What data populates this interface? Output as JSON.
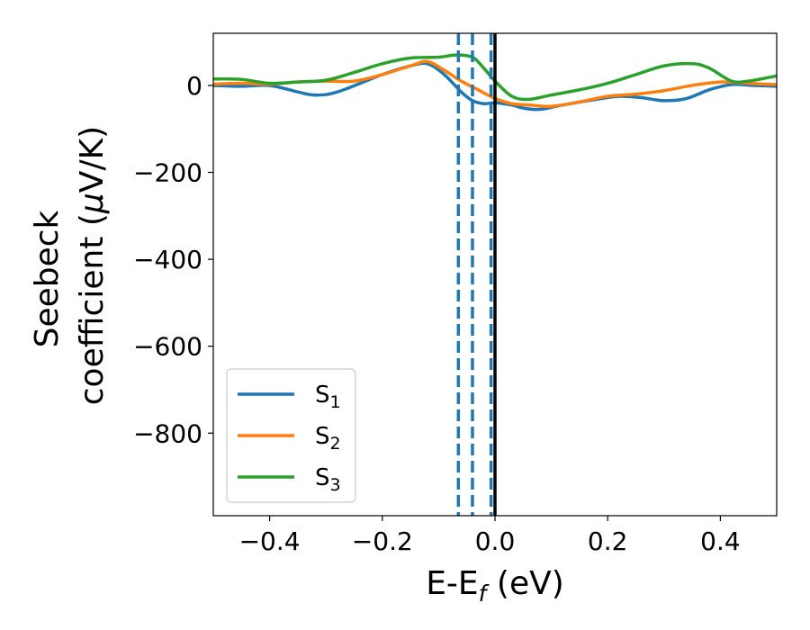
{
  "chart_data": {
    "type": "line",
    "xlabel": {
      "main": "E-E",
      "sub": "f",
      "unit": " (eV)"
    },
    "ylabel": {
      "line1": "Seebeck",
      "line2_prefix": "coefficient  (",
      "line2_mu": "μ",
      "line2_suffix": "V/K)"
    },
    "xlim": [
      -0.5,
      0.5
    ],
    "ylim": [
      -990,
      120
    ],
    "xticks": [
      -0.4,
      -0.2,
      0.0,
      0.2,
      0.4
    ],
    "xtick_labels": [
      "−0.4",
      "−0.2",
      "0.0",
      "0.2",
      "0.4"
    ],
    "yticks": [
      0,
      -200,
      -400,
      -600,
      -800
    ],
    "ytick_labels": [
      "0",
      "−200",
      "−400",
      "−600",
      "−800"
    ],
    "vlines_dashed": {
      "x": [
        -0.065,
        -0.04,
        -0.007
      ],
      "color": "#1f77b4"
    },
    "vline_solid": {
      "x": 0.0,
      "color": "#000000"
    },
    "legend": {
      "position": "lower-left"
    },
    "series": [
      {
        "name": "S",
        "sub": "1",
        "color": "#1f77b4",
        "x": [
          -0.5,
          -0.45,
          -0.4,
          -0.35,
          -0.32,
          -0.28,
          -0.2,
          -0.15,
          -0.12,
          -0.09,
          -0.06,
          -0.04,
          -0.02,
          0.0,
          0.03,
          0.05,
          0.08,
          0.12,
          0.18,
          0.22,
          0.26,
          0.3,
          0.34,
          0.38,
          0.42,
          0.46,
          0.5
        ],
        "y": [
          0,
          -2,
          0,
          -15,
          -22,
          -15,
          25,
          45,
          50,
          25,
          -15,
          -35,
          -42,
          -40,
          -45,
          -52,
          -55,
          -45,
          -32,
          -25,
          -28,
          -35,
          -30,
          -10,
          2,
          0,
          -2
        ]
      },
      {
        "name": "S",
        "sub": "2",
        "color": "#ff7f0e",
        "x": [
          -0.5,
          -0.45,
          -0.4,
          -0.35,
          -0.3,
          -0.25,
          -0.2,
          -0.15,
          -0.12,
          -0.09,
          -0.06,
          -0.03,
          0.0,
          0.03,
          0.06,
          0.1,
          0.15,
          0.2,
          0.25,
          0.3,
          0.35,
          0.4,
          0.45,
          0.5
        ],
        "y": [
          3,
          5,
          3,
          8,
          10,
          10,
          25,
          45,
          55,
          35,
          10,
          -10,
          -30,
          -42,
          -45,
          -48,
          -38,
          -25,
          -20,
          -12,
          0,
          8,
          5,
          2
        ]
      },
      {
        "name": "S",
        "sub": "3",
        "color": "#2ca02c",
        "x": [
          -0.5,
          -0.45,
          -0.4,
          -0.35,
          -0.3,
          -0.25,
          -0.2,
          -0.15,
          -0.1,
          -0.07,
          -0.04,
          -0.02,
          0.0,
          0.03,
          0.06,
          0.1,
          0.15,
          0.2,
          0.25,
          0.3,
          0.35,
          0.38,
          0.42,
          0.45,
          0.5
        ],
        "y": [
          15,
          14,
          5,
          8,
          12,
          30,
          50,
          63,
          65,
          70,
          65,
          40,
          10,
          -25,
          -32,
          -22,
          -10,
          5,
          25,
          45,
          50,
          40,
          10,
          10,
          22
        ]
      }
    ]
  }
}
